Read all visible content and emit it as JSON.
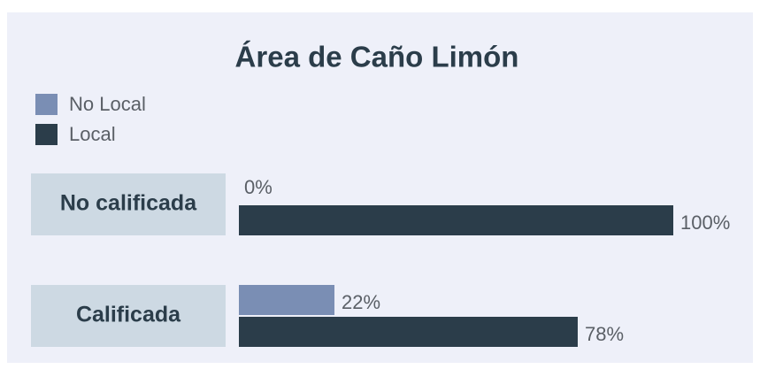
{
  "chart_data": {
    "type": "bar",
    "orientation": "horizontal",
    "title": "Área de Caño Limón",
    "categories": [
      "No calificada",
      "Calificada"
    ],
    "series": [
      {
        "name": "No Local",
        "color": "#7a8eb4",
        "values": [
          0,
          22
        ],
        "value_labels": [
          "0%",
          "22%"
        ]
      },
      {
        "name": "Local",
        "color": "#2b3d4a",
        "values": [
          100,
          78
        ],
        "value_labels": [
          "100%",
          "78%"
        ]
      }
    ],
    "legend": "top-left"
  }
}
